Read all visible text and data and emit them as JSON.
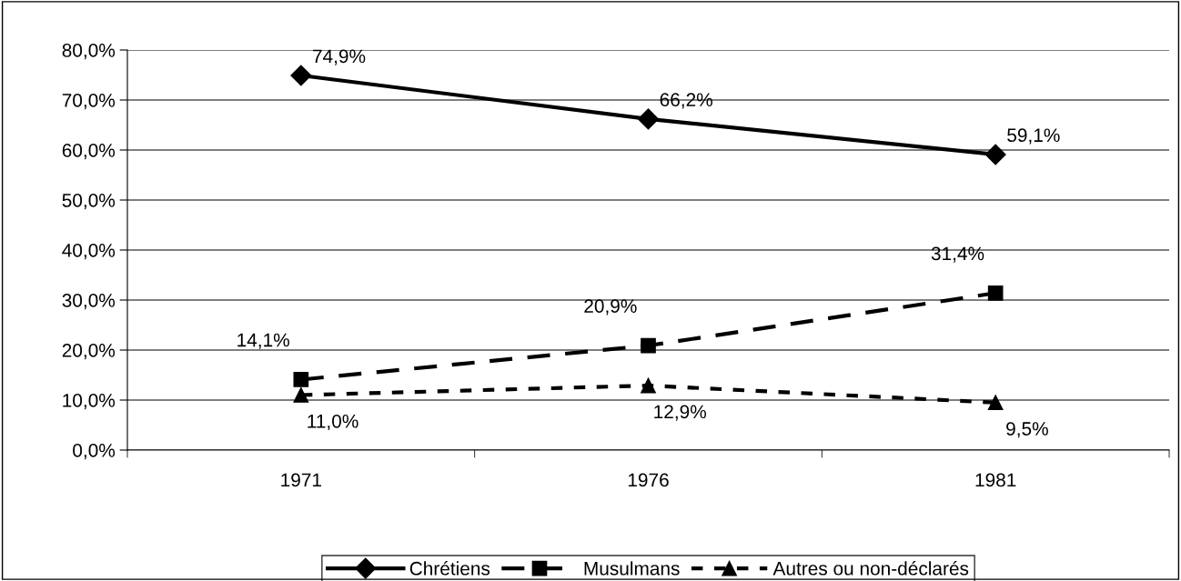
{
  "chart_data": {
    "type": "line",
    "categories": [
      "1971",
      "1976",
      "1981"
    ],
    "ylim": [
      0,
      80
    ],
    "yticks": [
      {
        "value": 0,
        "label": "0,0%"
      },
      {
        "value": 10,
        "label": "10,0%"
      },
      {
        "value": 20,
        "label": "20,0%"
      },
      {
        "value": 30,
        "label": "30,0%"
      },
      {
        "value": 40,
        "label": "40,0%"
      },
      {
        "value": 50,
        "label": "50,0%"
      },
      {
        "value": 60,
        "label": "60,0%"
      },
      {
        "value": 70,
        "label": "70,0%"
      },
      {
        "value": 80,
        "label": "80,0%"
      }
    ],
    "grid": "y",
    "legend": "bottom",
    "series": [
      {
        "name": "Chrétiens",
        "color": "#000000",
        "marker": "diamond",
        "line_style": "solid",
        "values": [
          74.9,
          66.2,
          59.1
        ],
        "value_labels": [
          "74,9%",
          "66,2%",
          "59,1%"
        ]
      },
      {
        "name": "Musulmans",
        "color": "#000000",
        "marker": "square",
        "line_style": "dashed",
        "values": [
          14.1,
          20.9,
          31.4
        ],
        "value_labels": [
          "14,1%",
          "20,9%",
          "31,4%"
        ]
      },
      {
        "name": "Autres ou non-déclarés",
        "color": "#000000",
        "marker": "triangle",
        "line_style": "dotted",
        "values": [
          11.0,
          12.9,
          9.5
        ],
        "value_labels": [
          "11,0%",
          "12,9%",
          "9,5%"
        ]
      }
    ]
  }
}
